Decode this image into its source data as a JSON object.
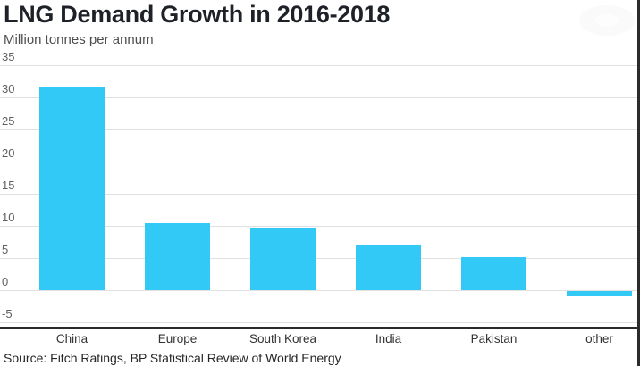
{
  "title": "LNG Demand Growth in 2016-2018",
  "subtitle": "Million tonnes per annum",
  "source": "Source: Fitch Ratings, BP Statistical Review of World Energy",
  "colors": {
    "bar": "#33c9f6",
    "grid": "#e1e1e1",
    "axis": "#2b2b2b",
    "title_text": "#1e2228",
    "subtitle_text": "#4d4d4d",
    "tick_text": "#5f5f5f",
    "category_text": "#333333",
    "source_text": "#262626"
  },
  "chart_data": {
    "type": "bar",
    "categories": [
      "China",
      "Europe",
      "South Korea",
      "India",
      "Pakistan",
      "other"
    ],
    "values": [
      31.5,
      10.4,
      9.7,
      7.0,
      5.2,
      -0.8
    ],
    "title": "LNG Demand Growth in 2016-2018",
    "subtitle": "Million tonnes per annum",
    "xlabel": "",
    "ylabel": "Million tonnes per annum",
    "ylim": [
      -5,
      35
    ],
    "yticks": [
      35,
      30,
      25,
      20,
      15,
      10,
      5,
      0,
      -5
    ],
    "grid": true,
    "legend": false,
    "bar_color": "#33c9f6",
    "source": "Source: Fitch Ratings, BP Statistical Review of World Energy"
  }
}
